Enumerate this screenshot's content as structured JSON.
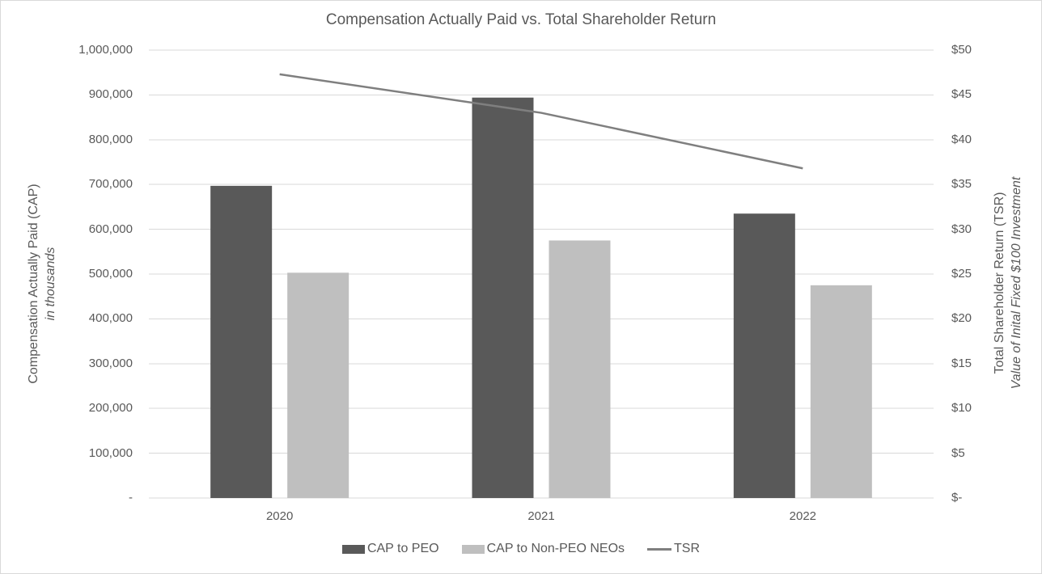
{
  "chart_data": {
    "type": "bar",
    "subtype": "clustered-bar-with-line-secondary-axis",
    "title": "Compensation Actually Paid vs. Total Shareholder Return",
    "categories": [
      "2020",
      "2021",
      "2022"
    ],
    "bar_series": [
      {
        "name": "CAP to PEO",
        "color": "#595959",
        "axis": "left",
        "values": [
          697000,
          894000,
          635000
        ]
      },
      {
        "name": "CAP to Non-PEO NEOs",
        "color": "#bfbfbf",
        "axis": "left",
        "values": [
          503000,
          575000,
          475000
        ]
      }
    ],
    "line_series": [
      {
        "name": "TSR",
        "color": "#7f7f7f",
        "axis": "right",
        "values": [
          47.3,
          43.0,
          36.8
        ]
      }
    ],
    "left_axis": {
      "title": "Compensation Actually Paid (CAP)",
      "subtitle": "in thousands",
      "min": 0,
      "max": 1000000,
      "step": 100000,
      "tick_labels_bottom_to_top": [
        "-",
        "100,000",
        "200,000",
        "300,000",
        "400,000",
        "500,000",
        "600,000",
        "700,000",
        "800,000",
        "900,000",
        "1,000,000"
      ]
    },
    "right_axis": {
      "title": "Total Shareholder Return (TSR)",
      "subtitle": "Value of Inital Fixed $100 Investment",
      "min": 0,
      "max": 50,
      "step": 5,
      "tick_labels_bottom_to_top": [
        "$-",
        "$5",
        "$10",
        "$15",
        "$20",
        "$25",
        "$30",
        "$35",
        "$40",
        "$45",
        "$50"
      ]
    },
    "grid": true,
    "legend_position": "bottom",
    "colors": {
      "grid": "#d9d9d9",
      "text": "#595959",
      "border": "#d9d9d9",
      "background": "#ffffff"
    }
  }
}
